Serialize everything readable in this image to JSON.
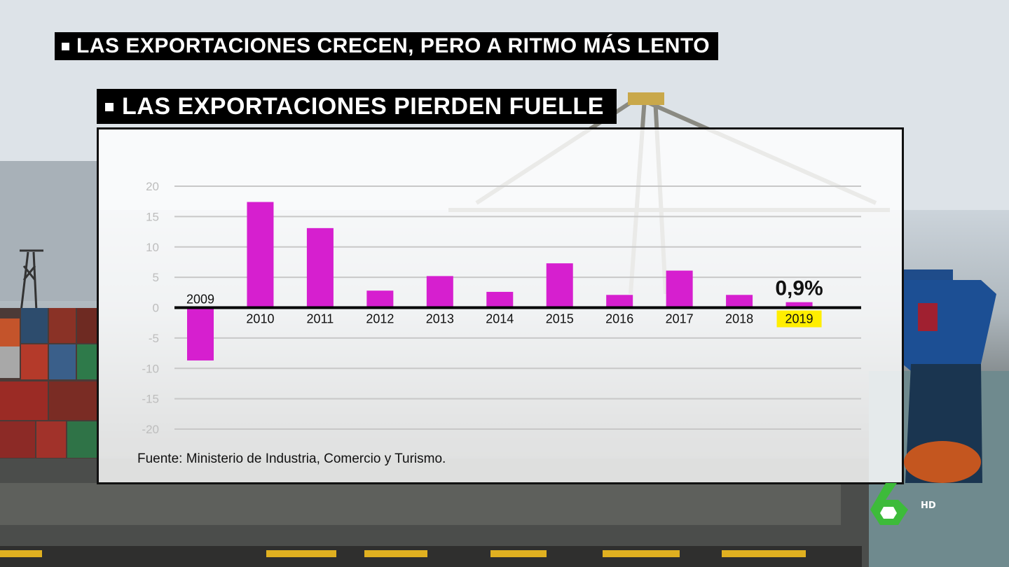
{
  "headline_main": "LAS EXPORTACIONES CRECEN, PERO A RITMO MÁS LENTO",
  "headline_sub": "LAS EXPORTACIONES PIERDEN FUELLE",
  "source": "Fuente: Ministerio de Industria, Comercio y Turismo.",
  "channel": {
    "logo": "6",
    "badge": "HD",
    "color": "#3dbb3a"
  },
  "colors": {
    "bar": "#d61fcf",
    "highlight": "#ffee00"
  },
  "chart_data": {
    "type": "bar",
    "categories": [
      "2009",
      "2010",
      "2011",
      "2012",
      "2013",
      "2014",
      "2015",
      "2016",
      "2017",
      "2018",
      "2019"
    ],
    "values": [
      -8.7,
      17.4,
      13.1,
      2.8,
      5.2,
      2.6,
      7.3,
      2.1,
      6.1,
      2.1,
      0.9
    ],
    "highlight_category": "2019",
    "annotation": "0,9%",
    "ylim": [
      -20,
      20
    ],
    "yticks": [
      20,
      15,
      10,
      5,
      0,
      -5,
      -10,
      -15,
      -20
    ],
    "grid": true,
    "xlabel": "",
    "ylabel": ""
  }
}
